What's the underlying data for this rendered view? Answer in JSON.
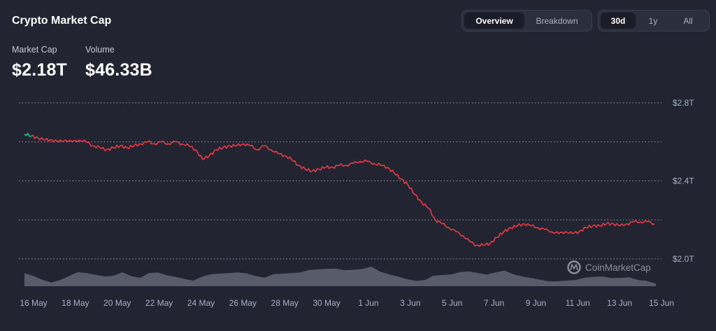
{
  "header": {
    "title": "Crypto Market Cap"
  },
  "stats": {
    "market_cap_label": "Market Cap",
    "market_cap_value": "$2.18T",
    "volume_label": "Volume",
    "volume_value": "$46.33B"
  },
  "view_toggle": {
    "overview_label": "Overview",
    "breakdown_label": "Breakdown",
    "selected": "Overview"
  },
  "range_toggle": {
    "d30_label": "30d",
    "y1_label": "1y",
    "all_label": "All",
    "selected": "30d"
  },
  "watermark": {
    "text": "CoinMarketCap",
    "icon": "coinmarketcap-logo-icon"
  },
  "chart_data": {
    "type": "line",
    "ylim": [
      1.9,
      2.8
    ],
    "yticks": [
      {
        "value": 2.0,
        "label": "$2.0T"
      },
      {
        "value": 2.4,
        "label": "$2.4T"
      },
      {
        "value": 2.8,
        "label": "$2.8T"
      }
    ],
    "xticks": [
      "16 May",
      "18 May",
      "20 May",
      "22 May",
      "24 May",
      "26 May",
      "28 May",
      "30 May",
      "1 Jun",
      "3 Jun",
      "5 Jun",
      "7 Jun",
      "9 Jun",
      "11 Jun",
      "13 Jun",
      "15 Jun"
    ],
    "grid": "horizontal-dotted",
    "colors": {
      "down": "#ea3943",
      "up": "#16c784",
      "volume": "#6b6f7d",
      "grid": "#c8c8c8"
    },
    "series": [
      {
        "values": [
          2.64,
          2.63,
          2.62,
          2.61,
          2.61,
          2.6,
          2.61,
          2.6,
          2.61,
          2.6,
          2.58,
          2.57,
          2.56,
          2.57,
          2.58,
          2.57,
          2.58,
          2.59,
          2.6,
          2.59,
          2.6,
          2.59,
          2.6,
          2.59,
          2.58,
          2.56,
          2.51,
          2.53,
          2.56,
          2.57,
          2.58,
          2.58,
          2.59,
          2.58,
          2.56,
          2.58,
          2.56,
          2.54,
          2.53,
          2.51,
          2.48,
          2.46,
          2.45,
          2.46,
          2.47,
          2.47,
          2.48,
          2.48,
          2.49,
          2.5,
          2.5,
          2.49,
          2.48,
          2.47,
          2.44,
          2.41,
          2.38,
          2.33,
          2.29,
          2.26,
          2.2,
          2.18,
          2.16,
          2.14,
          2.12,
          2.09,
          2.07,
          2.07,
          2.08,
          2.11,
          2.14,
          2.16,
          2.17,
          2.18,
          2.17,
          2.16,
          2.15,
          2.14,
          2.13,
          2.14,
          2.13,
          2.14,
          2.16,
          2.17,
          2.17,
          2.18,
          2.18,
          2.17,
          2.18,
          2.19,
          2.19,
          2.19,
          2.18
        ]
      }
    ],
    "volume_series": [
      0.55,
      0.45,
      0.3,
      0.2,
      0.25,
      0.45,
      0.65,
      0.55,
      0.5,
      0.45,
      0.5,
      0.6,
      0.45,
      0.4,
      0.55,
      0.6,
      0.5,
      0.45,
      0.3,
      0.25,
      0.45,
      0.5,
      0.55,
      0.6,
      0.65,
      0.55,
      0.45,
      0.4,
      0.5,
      0.55,
      0.6,
      0.65,
      0.7,
      0.75,
      0.8,
      0.75,
      0.7,
      0.75,
      0.8,
      0.85,
      0.65,
      0.55,
      0.4,
      0.3,
      0.25,
      0.3,
      0.45,
      0.5,
      0.55,
      0.6,
      0.65,
      0.6,
      0.55,
      0.6,
      0.7,
      0.55,
      0.4,
      0.35,
      0.3,
      0.25,
      0.2,
      0.25,
      0.3,
      0.35,
      0.4,
      0.45,
      0.4,
      0.35,
      0.4,
      0.3,
      0.2,
      0.1
    ]
  }
}
